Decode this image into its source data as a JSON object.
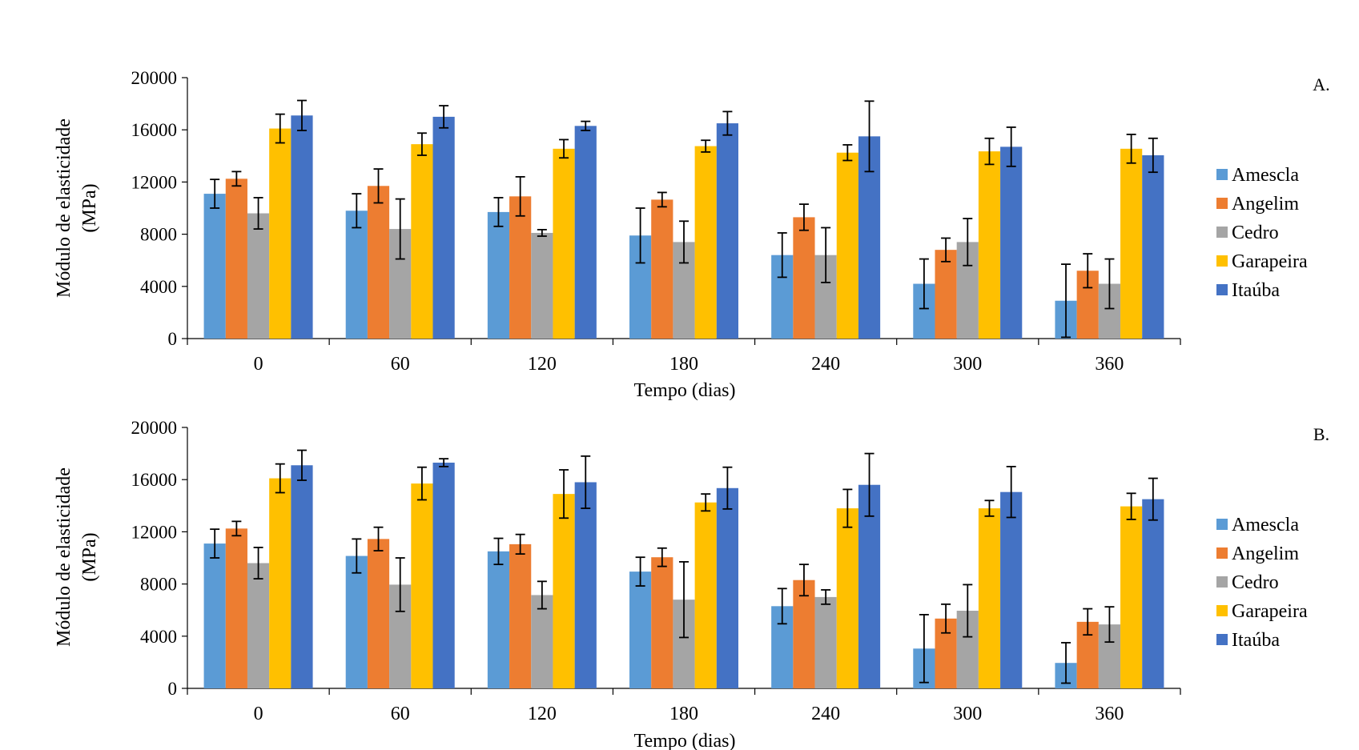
{
  "chart_data": [
    {
      "type": "bar",
      "panel_label": "A.",
      "xlabel": "Tempo (dias)",
      "ylabel_line1": "Módulo de elasticidade",
      "ylabel_line2": "(MPa)",
      "ylim": [
        0,
        20000
      ],
      "yticks": [
        "0",
        "4000",
        "8000",
        "12000",
        "16000",
        "20000"
      ],
      "yticks_values": [
        0,
        4000,
        8000,
        12000,
        16000,
        20000
      ],
      "categories": [
        "0",
        "60",
        "120",
        "180",
        "240",
        "300",
        "360"
      ],
      "legend_position": "right",
      "series": [
        {
          "name": "Amescla",
          "values": [
            11100,
            9800,
            9700,
            7900,
            6400,
            4200,
            2900
          ],
          "errors": [
            1100,
            1300,
            1100,
            2100,
            1700,
            1900,
            2800
          ]
        },
        {
          "name": "Angelim",
          "values": [
            12250,
            11700,
            10900,
            10650,
            9300,
            6800,
            5200
          ],
          "errors": [
            550,
            1300,
            1500,
            550,
            1000,
            900,
            1300
          ]
        },
        {
          "name": "Cedro",
          "values": [
            9600,
            8400,
            8100,
            7400,
            6400,
            7400,
            4200
          ],
          "errors": [
            1200,
            2300,
            250,
            1600,
            2100,
            1800,
            1900
          ]
        },
        {
          "name": "Garapeira",
          "values": [
            16100,
            14900,
            14550,
            14750,
            14250,
            14350,
            14550
          ],
          "errors": [
            1100,
            850,
            700,
            450,
            600,
            1000,
            1100
          ]
        },
        {
          "name": "Itaúba",
          "values": [
            17100,
            17000,
            16300,
            16500,
            15500,
            14700,
            14050
          ],
          "errors": [
            1150,
            850,
            350,
            900,
            2700,
            1500,
            1300
          ]
        }
      ]
    },
    {
      "type": "bar",
      "panel_label": "B.",
      "xlabel": "Tempo (dias)",
      "ylabel_line1": "Módulo de elasticidade",
      "ylabel_line2": "(MPa)",
      "ylim": [
        0,
        20000
      ],
      "yticks": [
        "0",
        "4000",
        "8000",
        "12000",
        "16000",
        "20000"
      ],
      "yticks_values": [
        0,
        4000,
        8000,
        12000,
        16000,
        20000
      ],
      "categories": [
        "0",
        "60",
        "120",
        "180",
        "240",
        "300",
        "360"
      ],
      "legend_position": "right",
      "series": [
        {
          "name": "Amescla",
          "values": [
            11100,
            10150,
            10500,
            8950,
            6300,
            3050,
            1950
          ],
          "errors": [
            1100,
            1300,
            1000,
            1100,
            1350,
            2600,
            1550
          ]
        },
        {
          "name": "Angelim",
          "values": [
            12250,
            11450,
            11050,
            10050,
            8300,
            5350,
            5100
          ],
          "errors": [
            550,
            900,
            750,
            700,
            1200,
            1100,
            1000
          ]
        },
        {
          "name": "Cedro",
          "values": [
            9600,
            7950,
            7150,
            6800,
            7000,
            5950,
            4900
          ],
          "errors": [
            1200,
            2050,
            1050,
            2900,
            550,
            2000,
            1350
          ]
        },
        {
          "name": "Garapeira",
          "values": [
            16100,
            15700,
            14900,
            14250,
            13800,
            13800,
            13950
          ],
          "errors": [
            1100,
            1250,
            1850,
            650,
            1450,
            600,
            1000
          ]
        },
        {
          "name": "Itaúba",
          "values": [
            17100,
            17300,
            15800,
            15350,
            15600,
            15050,
            14500
          ],
          "errors": [
            1150,
            300,
            2000,
            1600,
            2400,
            1950,
            1600
          ]
        }
      ]
    }
  ],
  "colors": {
    "Amescla": "#5B9BD5",
    "Angelim": "#ED7D31",
    "Cedro": "#A5A5A5",
    "Garapeira": "#FFC000",
    "Itaúba": "#4472C4"
  }
}
